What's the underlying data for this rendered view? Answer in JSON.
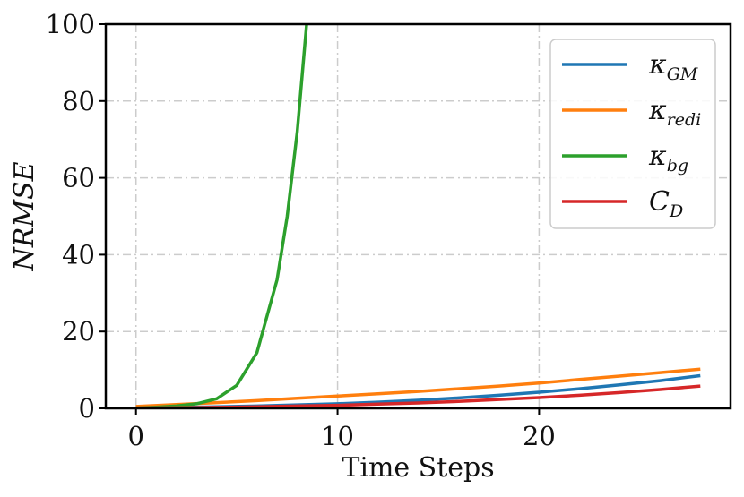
{
  "chart_data": {
    "type": "line",
    "xlabel": "Time Steps",
    "ylabel": "NRMSE",
    "xlim": [
      -1.5,
      29.5
    ],
    "ylim": [
      0,
      100
    ],
    "xticks": [
      0,
      10,
      20
    ],
    "yticks": [
      0,
      20,
      40,
      60,
      80,
      100
    ],
    "x_tick_labels": [
      "0",
      "10",
      "20"
    ],
    "y_tick_labels": [
      "0",
      "20",
      "40",
      "60",
      "80",
      "100"
    ],
    "grid": true,
    "legend_position": "top-right",
    "series": [
      {
        "name": "κGM",
        "legend_main": "κ",
        "legend_sub": "GM",
        "color": "#1f77b4",
        "x": [
          0,
          2,
          4,
          6,
          8,
          10,
          12,
          14,
          16,
          18,
          20,
          22,
          24,
          26,
          28
        ],
        "y": [
          0.1,
          0.2,
          0.4,
          0.6,
          0.9,
          1.2,
          1.6,
          2.1,
          2.7,
          3.4,
          4.2,
          5.1,
          6.1,
          7.2,
          8.5
        ]
      },
      {
        "name": "κredi",
        "legend_main": "κ",
        "legend_sub": "redi",
        "color": "#ff7f0e",
        "x": [
          0,
          2,
          4,
          6,
          8,
          10,
          12,
          14,
          16,
          18,
          20,
          22,
          24,
          26,
          28
        ],
        "y": [
          0.5,
          1.0,
          1.5,
          2.0,
          2.6,
          3.2,
          3.8,
          4.4,
          5.1,
          5.8,
          6.6,
          7.5,
          8.4,
          9.3,
          10.2
        ]
      },
      {
        "name": "κbg",
        "legend_main": "κ",
        "legend_sub": "bg",
        "color": "#2ca02c",
        "x": [
          0,
          1,
          2,
          3,
          4,
          5,
          6,
          7,
          7.5,
          8,
          8.5
        ],
        "y": [
          0.1,
          0.3,
          0.6,
          1.2,
          2.5,
          6,
          14.5,
          33.5,
          50,
          72,
          102
        ]
      },
      {
        "name": "CD",
        "legend_main": "C",
        "legend_sub": "D",
        "color": "#d62728",
        "x": [
          0,
          2,
          4,
          6,
          8,
          10,
          12,
          14,
          16,
          18,
          20,
          22,
          24,
          26,
          28
        ],
        "y": [
          0.1,
          0.15,
          0.25,
          0.4,
          0.6,
          0.8,
          1.1,
          1.4,
          1.8,
          2.3,
          2.8,
          3.4,
          4.1,
          4.9,
          5.8
        ]
      }
    ]
  }
}
